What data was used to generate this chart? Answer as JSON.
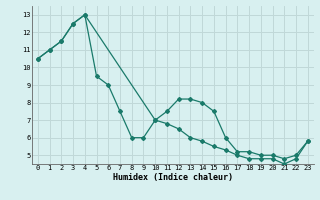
{
  "line1_x": [
    0,
    1,
    2,
    3,
    4,
    5,
    6,
    7,
    8,
    9,
    10,
    11,
    12,
    13,
    14,
    15,
    16,
    17,
    18,
    19,
    20,
    21,
    22,
    23
  ],
  "line1_y": [
    10.5,
    11.0,
    11.5,
    12.5,
    13.0,
    9.5,
    9.0,
    7.5,
    6.0,
    6.0,
    7.0,
    7.5,
    8.2,
    8.2,
    8.0,
    7.5,
    6.0,
    5.2,
    5.2,
    5.0,
    5.0,
    4.8,
    5.0,
    5.8
  ],
  "line2_x": [
    0,
    1,
    2,
    3,
    4,
    10,
    11,
    12,
    13,
    14,
    15,
    16,
    17,
    18,
    19,
    20,
    21,
    22,
    23
  ],
  "line2_y": [
    10.5,
    11.0,
    11.5,
    12.5,
    13.0,
    7.0,
    6.8,
    6.5,
    6.0,
    5.8,
    5.5,
    5.3,
    5.0,
    4.8,
    4.8,
    4.8,
    4.5,
    4.8,
    5.8
  ],
  "line_color": "#1a7a6a",
  "bg_color": "#d8f0f0",
  "grid_color": "#c0d8d8",
  "xlabel": "Humidex (Indice chaleur)",
  "xlim": [
    -0.5,
    23.5
  ],
  "ylim": [
    4.5,
    13.5
  ],
  "yticks": [
    5,
    6,
    7,
    8,
    9,
    10,
    11,
    12,
    13
  ],
  "xticks": [
    0,
    1,
    2,
    3,
    4,
    5,
    6,
    7,
    8,
    9,
    10,
    11,
    12,
    13,
    14,
    15,
    16,
    17,
    18,
    19,
    20,
    21,
    22,
    23
  ],
  "marker": "D",
  "markersize": 2.0,
  "linewidth": 0.9,
  "tick_fontsize": 5.0,
  "xlabel_fontsize": 6.0
}
